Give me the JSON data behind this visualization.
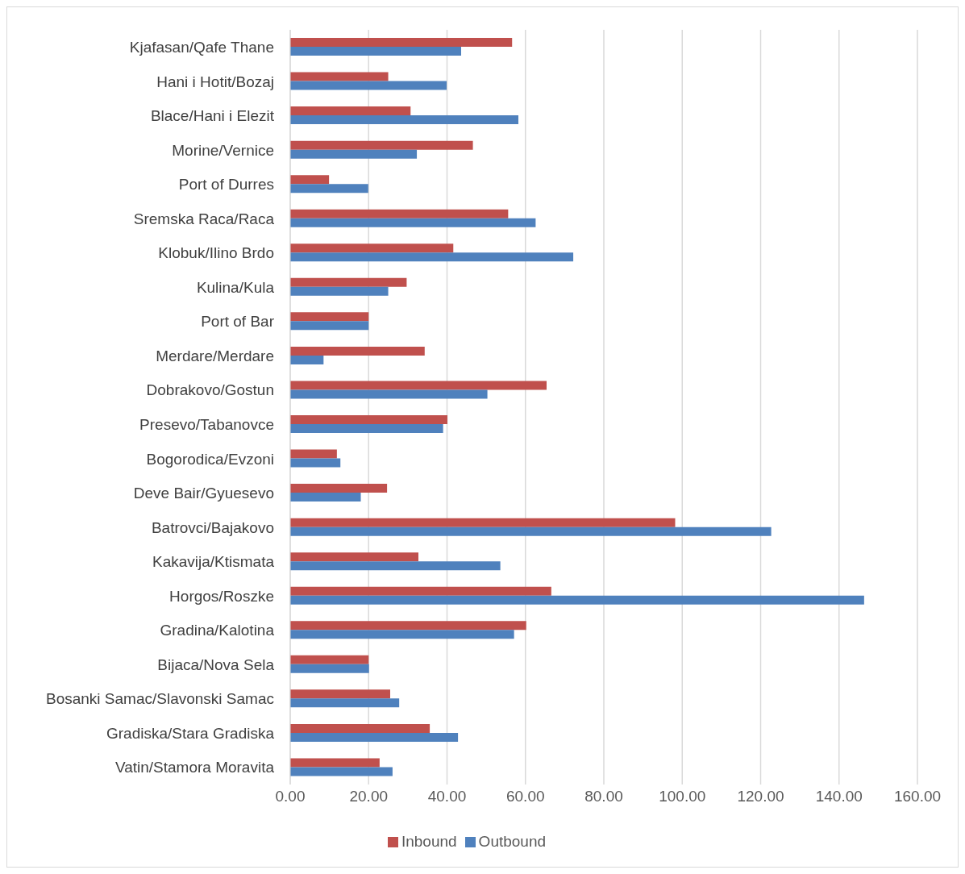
{
  "chart_data": {
    "type": "bar",
    "orientation": "horizontal",
    "categories": [
      "Kjafasan/Qafe Thane",
      "Hani i Hotit/Bozaj",
      "Blace/Hani i Elezit",
      "Morine/Vernice",
      "Port of Durres",
      "Sremska Raca/Raca",
      "Klobuk/Ilino Brdo",
      "Kulina/Kula",
      "Port of Bar",
      "Merdare/Merdare",
      "Dobrakovo/Gostun",
      "Presevo/Tabanovce",
      "Bogorodica/Evzoni",
      "Deve Bair/Gyuesevo",
      "Batrovci/Bajakovo",
      "Kakavija/Ktismata",
      "Horgos/Roszke",
      "Gradina/Kalotina",
      "Bijaca/Nova Sela",
      "Bosanki Samac/Slavonski Samac",
      "Gradiska/Stara Gradiska",
      "Vatin/Stamora Moravita"
    ],
    "series": [
      {
        "name": "Inbound",
        "color": "#c0504d",
        "values": [
          56.6,
          25.0,
          30.7,
          46.6,
          9.9,
          55.6,
          41.6,
          29.7,
          20.0,
          34.3,
          65.4,
          40.1,
          11.9,
          24.7,
          98.2,
          32.7,
          66.6,
          60.2,
          20.0,
          25.5,
          35.6,
          22.8
        ]
      },
      {
        "name": "Outbound",
        "color": "#4f81bd",
        "values": [
          43.6,
          39.9,
          58.2,
          32.3,
          19.9,
          62.6,
          72.2,
          25.0,
          20.0,
          8.5,
          50.3,
          39.0,
          12.8,
          18.0,
          122.7,
          53.6,
          146.4,
          57.1,
          20.1,
          27.8,
          42.8,
          26.1
        ]
      }
    ],
    "xlim": [
      0,
      160
    ],
    "xticks": [
      {
        "value": 0,
        "label": "0.00"
      },
      {
        "value": 20,
        "label": "20.00"
      },
      {
        "value": 40,
        "label": "40.00"
      },
      {
        "value": 60,
        "label": "60.00"
      },
      {
        "value": 80,
        "label": "80.00"
      },
      {
        "value": 100,
        "label": "100.00"
      },
      {
        "value": 120,
        "label": "120.00"
      },
      {
        "value": 140,
        "label": "140.00"
      },
      {
        "value": 160,
        "label": "160.00"
      }
    ],
    "grid": "x",
    "legend": "bottom"
  }
}
